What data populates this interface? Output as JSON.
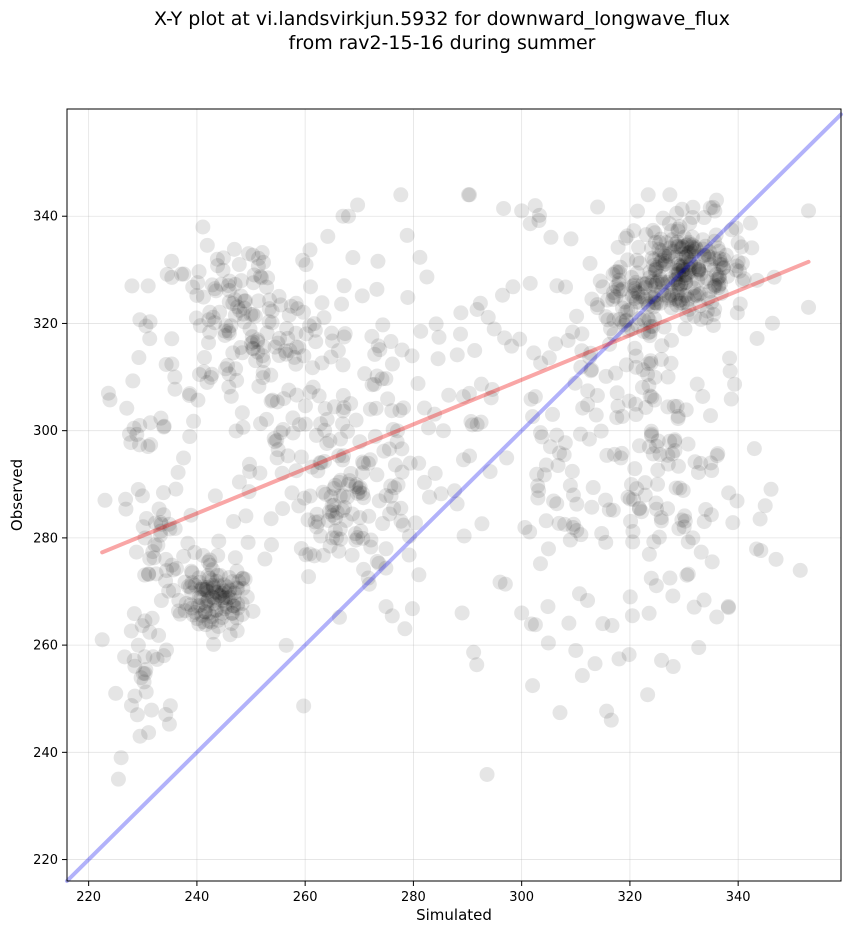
{
  "chart_data": {
    "type": "scatter",
    "title_line1": "X-Y plot at vi.landsvirkjun.5932 for downward_longwave_flux",
    "title_line2": "from rav2-15-16 during summer",
    "xlabel": "Simulated",
    "ylabel": "Observed",
    "xlim": [
      216,
      359
    ],
    "ylim": [
      216,
      360
    ],
    "xticks": [
      "220",
      "240",
      "260",
      "280",
      "300",
      "320",
      "340"
    ],
    "yticks": [
      "220",
      "240",
      "260",
      "280",
      "300",
      "320",
      "340"
    ],
    "grid": true,
    "point_color": "#000000",
    "point_opacity": 0.1,
    "series": [
      {
        "name": "observations",
        "clusters": [
          {
            "cx": 244,
            "cy": 268,
            "sx": 3,
            "sy": 3,
            "n": 90
          },
          {
            "cx": 238,
            "cy": 272,
            "sx": 4,
            "sy": 5,
            "n": 40
          },
          {
            "cx": 330,
            "cy": 330,
            "sx": 6,
            "sy": 5,
            "n": 260
          },
          {
            "cx": 320,
            "cy": 322,
            "sx": 4,
            "sy": 4,
            "n": 60
          },
          {
            "cx": 270,
            "cy": 287,
            "sx": 5,
            "sy": 5,
            "n": 60
          },
          {
            "cx": 248,
            "cy": 320,
            "sx": 8,
            "sy": 8,
            "n": 130
          },
          {
            "cx": 262,
            "cy": 300,
            "sx": 12,
            "sy": 18,
            "n": 200
          },
          {
            "cx": 232,
            "cy": 285,
            "sx": 4,
            "sy": 15,
            "n": 50
          },
          {
            "cx": 231,
            "cy": 255,
            "sx": 3,
            "sy": 7,
            "n": 25
          },
          {
            "cx": 300,
            "cy": 305,
            "sx": 14,
            "sy": 22,
            "n": 110
          },
          {
            "cx": 328,
            "cy": 290,
            "sx": 9,
            "sy": 15,
            "n": 130
          },
          {
            "cx": 312,
            "cy": 290,
            "sx": 8,
            "sy": 15,
            "n": 40
          }
        ]
      }
    ],
    "extra_points": [
      {
        "x": 222.5,
        "y": 261
      },
      {
        "x": 225.5,
        "y": 235
      },
      {
        "x": 226,
        "y": 239
      },
      {
        "x": 225,
        "y": 251
      },
      {
        "x": 229,
        "y": 247
      },
      {
        "x": 228,
        "y": 327
      },
      {
        "x": 231,
        "y": 327
      },
      {
        "x": 229.5,
        "y": 243
      },
      {
        "x": 310,
        "y": 259
      },
      {
        "x": 328,
        "y": 256
      },
      {
        "x": 353,
        "y": 341
      },
      {
        "x": 353,
        "y": 323
      },
      {
        "x": 347,
        "y": 276
      },
      {
        "x": 345,
        "y": 286
      },
      {
        "x": 336,
        "y": 343
      },
      {
        "x": 300,
        "y": 341
      },
      {
        "x": 268,
        "y": 340
      },
      {
        "x": 267,
        "y": 340
      },
      {
        "x": 289,
        "y": 266
      },
      {
        "x": 300,
        "y": 266
      },
      {
        "x": 315,
        "y": 264
      }
    ],
    "lines": [
      {
        "name": "one-to-one",
        "color": "#0000ee",
        "opacity": 0.3,
        "x": [
          216,
          359
        ],
        "y": [
          216,
          359
        ]
      },
      {
        "name": "regression",
        "color": "#ee0000",
        "opacity": 0.35,
        "x": [
          222.5,
          353
        ],
        "y": [
          277.3,
          331.5
        ]
      }
    ]
  }
}
